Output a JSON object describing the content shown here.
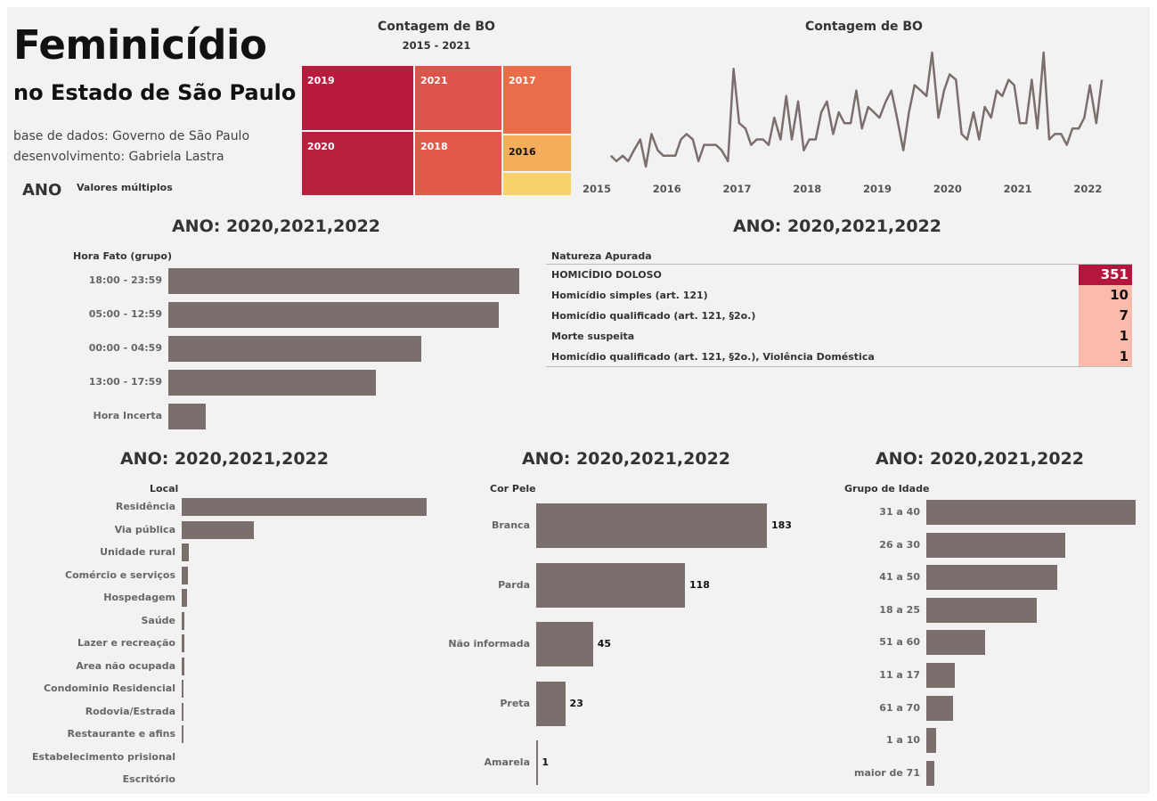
{
  "header": {
    "title": "Feminicídio",
    "subtitle": "no Estado de São Paulo",
    "source": "base de dados: Governo de São Paulo",
    "author": "desenvolvimento: Gabriela Lastra",
    "filter_label": "ANO",
    "filter_value": "Valores múltiplos"
  },
  "chart_data": [
    {
      "type": "treemap",
      "title": "Contagem de BO",
      "subtitle": "2015 - 2021",
      "items": [
        {
          "label": "2019",
          "color": "#b91b3e"
        },
        {
          "label": "2020",
          "color": "#bb1f3e"
        },
        {
          "label": "2021",
          "color": "#de544a"
        },
        {
          "label": "2018",
          "color": "#e25a47"
        },
        {
          "label": "2017",
          "color": "#ea6c48"
        },
        {
          "label": "2016",
          "color": "#f4ad5a"
        },
        {
          "label": "",
          "color": "#f5d36a"
        }
      ]
    },
    {
      "type": "line",
      "title": "Contagem de BO",
      "x_ticks": [
        "2015",
        "2016",
        "2017",
        "2018",
        "2019",
        "2020",
        "2021",
        "2022"
      ],
      "x_range": [
        2015,
        2022.3
      ],
      "x": [
        2015.2,
        2015.28,
        2015.37,
        2015.45,
        2015.53,
        2015.62,
        2015.7,
        2015.78,
        2015.87,
        2015.95,
        2016.03,
        2016.12,
        2016.2,
        2016.28,
        2016.37,
        2016.45,
        2016.53,
        2016.62,
        2016.7,
        2016.78,
        2016.87,
        2016.95,
        2017.03,
        2017.12,
        2017.2,
        2017.28,
        2017.37,
        2017.45,
        2017.53,
        2017.62,
        2017.7,
        2017.78,
        2017.87,
        2017.95,
        2018.03,
        2018.12,
        2018.2,
        2018.28,
        2018.37,
        2018.45,
        2018.53,
        2018.62,
        2018.7,
        2018.78,
        2018.87,
        2018.95,
        2019.03,
        2019.12,
        2019.2,
        2019.28,
        2019.37,
        2019.45,
        2019.53,
        2019.62,
        2019.7,
        2019.78,
        2019.87,
        2019.95,
        2020.03,
        2020.12,
        2020.2,
        2020.28,
        2020.37,
        2020.45,
        2020.53,
        2020.62,
        2020.7,
        2020.78,
        2020.87,
        2020.95,
        2021.03,
        2021.12,
        2021.2,
        2021.28,
        2021.37,
        2021.45,
        2021.53,
        2021.62,
        2021.7,
        2021.78,
        2021.87,
        2021.95,
        2022.03,
        2022.12,
        2022.2
      ],
      "values": [
        12,
        11,
        12,
        11,
        13,
        15,
        10,
        16,
        13,
        12,
        12,
        12,
        15,
        16,
        15,
        11,
        14,
        14,
        14,
        13,
        11,
        28,
        18,
        17,
        14,
        15,
        15,
        14,
        19,
        15,
        23,
        15,
        22,
        13,
        15,
        15,
        20,
        22,
        16,
        20,
        18,
        18,
        24,
        17,
        21,
        20,
        19,
        22,
        24,
        19,
        13,
        20,
        25,
        24,
        23,
        31,
        19,
        24,
        27,
        26,
        16,
        15,
        20,
        15,
        21,
        19,
        24,
        23,
        26,
        25,
        18,
        18,
        26,
        17,
        31,
        15,
        16,
        16,
        14,
        17,
        17,
        19,
        25,
        18,
        26
      ]
    },
    {
      "type": "bar",
      "orientation": "horizontal",
      "title": "ANO: 2020,2021,2022",
      "header": "Hora Fato (grupo)",
      "categories": [
        "18:00 - 23:59",
        "05:00 - 12:59",
        "00:00 - 04:59",
        "13:00 - 17:59",
        "Hora Incerta"
      ],
      "values": [
        122,
        115,
        88,
        72,
        13
      ]
    },
    {
      "type": "table",
      "title": "ANO: 2020,2021,2022",
      "header": "Natureza Apurada",
      "rows": [
        {
          "label": "HOMICÍDIO DOLOSO",
          "value": "351"
        },
        {
          "label": "Homicídio simples (art. 121)",
          "value": "10"
        },
        {
          "label": "Homicídio qualificado (art. 121, §2o.)",
          "value": "7"
        },
        {
          "label": "Morte suspeita",
          "value": "1"
        },
        {
          "label": "Homicídio qualificado (art. 121, §2o.), Violência Doméstica",
          "value": "1"
        }
      ]
    },
    {
      "type": "bar",
      "orientation": "horizontal",
      "title": "ANO: 2020,2021,2022",
      "header": "Local",
      "categories": [
        "Residência",
        "Via pública",
        "Unidade rural",
        "Comércio e serviços",
        "Hospedagem",
        "Saúde",
        "Lazer e recreação",
        "Area não ocupada",
        "Condominio Residencial",
        "Rodovia/Estrada",
        "Restaurante e afins",
        "Estabelecimento prisional",
        "Escritório"
      ],
      "values": [
        270,
        80,
        8,
        7,
        6,
        3,
        3,
        3,
        2,
        1,
        1,
        0,
        0
      ]
    },
    {
      "type": "bar",
      "orientation": "horizontal",
      "title": "ANO: 2020,2021,2022",
      "header": "Cor Pele",
      "categories": [
        "Branca",
        "Parda",
        "Não informada",
        "Preta",
        "Amarela"
      ],
      "values": [
        183,
        118,
        45,
        23,
        1
      ],
      "value_labels": [
        "183",
        "118",
        "45",
        "23",
        "1"
      ]
    },
    {
      "type": "bar",
      "orientation": "horizontal",
      "title": "ANO: 2020,2021,2022",
      "header": "Grupo de Idade",
      "categories": [
        "31 a 40",
        "26 a 30",
        "41 a 50",
        "18 a 25",
        "51 a 60",
        "11 a 17",
        "61 a 70",
        "1 a 10",
        "maior de 71"
      ],
      "values": [
        110,
        73,
        69,
        58,
        31,
        15,
        14,
        5,
        4
      ]
    }
  ]
}
